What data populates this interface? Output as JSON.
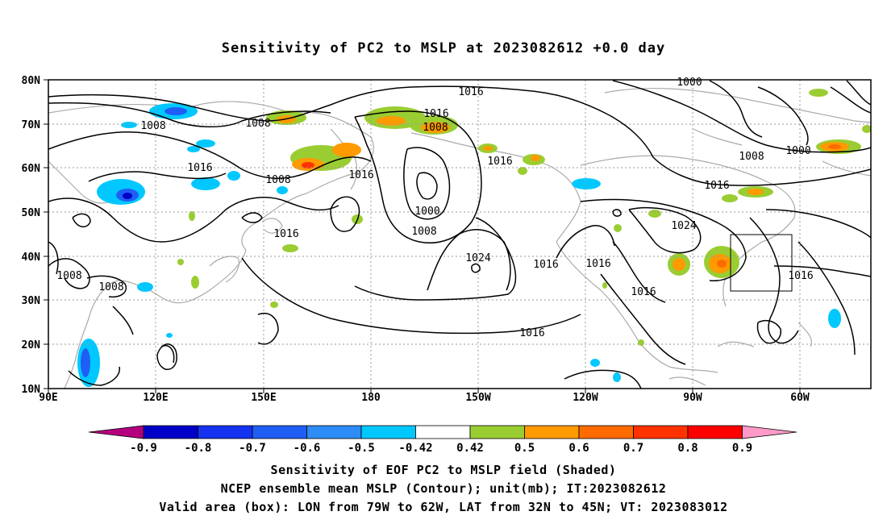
{
  "title": "Sensitivity of PC2 to MSLP at 2023082612 +0.0 day",
  "map": {
    "lon_ticks": [
      "90E",
      "120E",
      "150E",
      "180",
      "150W",
      "120W",
      "90W",
      "60W"
    ],
    "lat_ticks": [
      "80N",
      "70N",
      "60N",
      "50N",
      "40N",
      "30N",
      "20N",
      "10N"
    ],
    "contour_labels": [
      "1016",
      "1016",
      "1008",
      "1008",
      "1000",
      "1008",
      "1016",
      "1008",
      "1016",
      "1016",
      "1016",
      "1000",
      "1008",
      "1000",
      "1008",
      "1016",
      "1024",
      "1024",
      "1016",
      "1016",
      "1016",
      "1016",
      "1016",
      "1008",
      "1008"
    ],
    "valid_box": {
      "lon_from": "79W",
      "lon_to": "62W",
      "lat_from": "32N",
      "lat_to": "45N"
    },
    "colors": {
      "land": "#aaaaaa",
      "contour": "#000000",
      "grid": "#999999"
    }
  },
  "colorbar": {
    "labels": [
      "-0.9",
      "-0.8",
      "-0.7",
      "-0.6",
      "-0.5",
      "-0.42",
      "0.42",
      "0.5",
      "0.6",
      "0.7",
      "0.8",
      "0.9"
    ],
    "colors": [
      "#b4007f",
      "#0000c8",
      "#1432f0",
      "#1e5ef5",
      "#2d8cf5",
      "#00c8ff",
      "#ffffff",
      "#9acd32",
      "#ff9a00",
      "#ff6a00",
      "#ff3200",
      "#ff0000",
      "#ff9ac8"
    ]
  },
  "footer": {
    "line1": "Sensitivity of EOF PC2 to MSLP field (Shaded)",
    "line2": "NCEP ensemble mean MSLP (Contour); unit(mb); IT:2023082612",
    "line3": "Valid area (box): LON from 79W to 62W, LAT from 32N to 45N; VT: 2023083012"
  }
}
